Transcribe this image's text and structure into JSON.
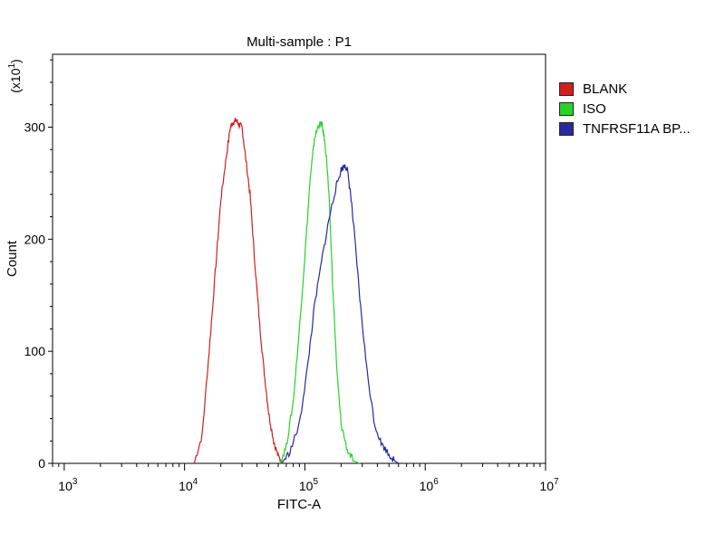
{
  "chart_data": {
    "type": "line",
    "title": "Multi-sample : P1",
    "xlabel": "FITC-A",
    "ylabel": "Count",
    "y_multiplier": "(x10",
    "y_multiplier_exp": "1",
    "y_multiplier_close": ")",
    "x_scale": "log",
    "xlim": [
      800,
      10000000
    ],
    "ylim": [
      0,
      365
    ],
    "x_ticks": [
      {
        "base": "10",
        "exp": "3",
        "value": 1000
      },
      {
        "base": "10",
        "exp": "4",
        "value": 10000
      },
      {
        "base": "10",
        "exp": "5",
        "value": 100000
      },
      {
        "base": "10",
        "exp": "6",
        "value": 1000000
      },
      {
        "base": "10",
        "exp": "7",
        "value": 10000000
      }
    ],
    "y_ticks": [
      {
        "label": "0",
        "value": 0
      },
      {
        "label": "100",
        "value": 100
      },
      {
        "label": "200",
        "value": 200
      },
      {
        "label": "300",
        "value": 300
      }
    ],
    "legend_position": "right",
    "series": [
      {
        "name": "BLANK",
        "color": "#d21e1e",
        "x": [
          12000,
          14000,
          16000,
          18000,
          20000,
          22000,
          24000,
          25500,
          27000,
          28500,
          30000,
          32000,
          35000,
          38000,
          42000,
          46000,
          50000,
          55000,
          60000,
          66000
        ],
        "y": [
          0,
          25,
          100,
          170,
          235,
          270,
          300,
          305,
          306,
          302,
          300,
          275,
          240,
          185,
          125,
          80,
          45,
          20,
          6,
          0
        ]
      },
      {
        "name": "ISO",
        "color": "#28d228",
        "x": [
          62000,
          70000,
          80000,
          90000,
          100000,
          110000,
          120000,
          130000,
          138000,
          145000,
          152000,
          160000,
          170000,
          185000,
          200000,
          225000,
          255000,
          285000
        ],
        "y": [
          0,
          15,
          55,
          120,
          185,
          250,
          290,
          302,
          303,
          290,
          270,
          230,
          160,
          80,
          35,
          12,
          2,
          0
        ]
      },
      {
        "name": "TNFRSF11A BP...",
        "color": "#2828a0",
        "x": [
          64000,
          75000,
          90000,
          105000,
          120000,
          140000,
          160000,
          180000,
          200000,
          215000,
          225000,
          240000,
          260000,
          290000,
          330000,
          380000,
          430000,
          500000,
          560000,
          600000
        ],
        "y": [
          0,
          10,
          35,
          85,
          140,
          185,
          220,
          245,
          262,
          266,
          262,
          240,
          200,
          140,
          80,
          35,
          18,
          8,
          2,
          0
        ]
      }
    ]
  }
}
